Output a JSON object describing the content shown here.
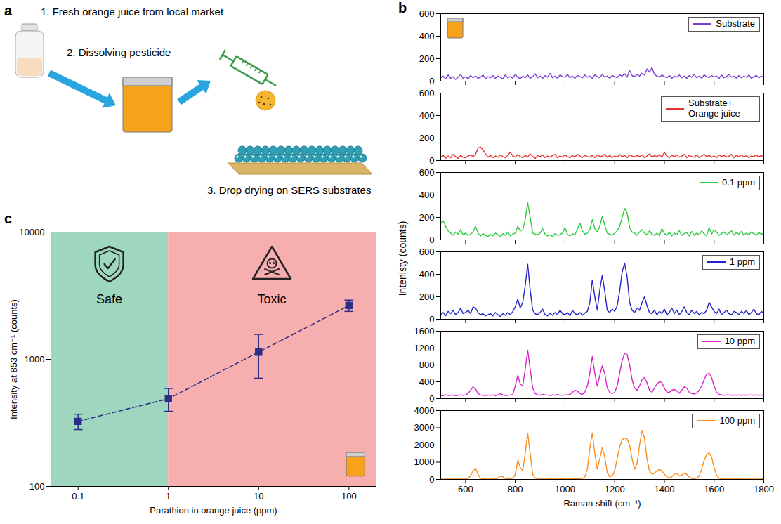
{
  "diagram": {
    "panel": "a",
    "steps": [
      "1. Fresh orange juice from local market",
      "2. Dissolving pesticide",
      "3. Drop drying on SERS substrates"
    ]
  },
  "chart_data": [
    {
      "panel": "b",
      "type": "line",
      "x_label": "Raman shift (cm⁻¹)",
      "y_label": "Intenisty (counts)",
      "legend": "top-right",
      "xlim": [
        500,
        1800
      ],
      "xticks": [
        600,
        800,
        1000,
        1200,
        1400,
        1600,
        1800
      ],
      "x": [
        500,
        510,
        520,
        530,
        540,
        550,
        560,
        570,
        580,
        590,
        600,
        610,
        620,
        630,
        640,
        650,
        660,
        670,
        680,
        690,
        700,
        710,
        720,
        730,
        740,
        750,
        760,
        770,
        780,
        790,
        800,
        810,
        820,
        830,
        840,
        850,
        860,
        870,
        880,
        890,
        900,
        910,
        920,
        930,
        940,
        950,
        960,
        970,
        980,
        990,
        1000,
        1010,
        1020,
        1030,
        1040,
        1050,
        1060,
        1070,
        1080,
        1090,
        1100,
        1110,
        1120,
        1130,
        1140,
        1150,
        1160,
        1170,
        1180,
        1190,
        1200,
        1210,
        1220,
        1230,
        1240,
        1250,
        1260,
        1270,
        1280,
        1290,
        1300,
        1310,
        1320,
        1330,
        1340,
        1350,
        1360,
        1370,
        1380,
        1390,
        1400,
        1410,
        1420,
        1430,
        1440,
        1450,
        1460,
        1470,
        1480,
        1490,
        1500,
        1510,
        1520,
        1530,
        1540,
        1550,
        1560,
        1570,
        1580,
        1590,
        1600,
        1610,
        1620,
        1630,
        1640,
        1650,
        1660,
        1670,
        1680,
        1690,
        1700,
        1710,
        1720,
        1730,
        1740,
        1750,
        1760,
        1770,
        1780,
        1790,
        1800
      ],
      "series": [
        {
          "name": "Substrate",
          "color": "#7b3fd6",
          "ylim": [
            0,
            600
          ],
          "yticks": [
            0,
            200,
            400,
            600
          ],
          "tick_labels": "y",
          "values": [
            30,
            45,
            20,
            55,
            25,
            40,
            15,
            35,
            60,
            25,
            40,
            20,
            50,
            30,
            45,
            25,
            35,
            55,
            20,
            40,
            30,
            50,
            25,
            45,
            35,
            20,
            55,
            30,
            40,
            25,
            60,
            35,
            20,
            45,
            30,
            55,
            25,
            40,
            65,
            30,
            45,
            25,
            50,
            35,
            70,
            30,
            45,
            25,
            55,
            40,
            35,
            60,
            30,
            45,
            25,
            50,
            40,
            30,
            55,
            35,
            45,
            25,
            55,
            40,
            30,
            60,
            35,
            45,
            25,
            50,
            40,
            30,
            55,
            45,
            65,
            35,
            95,
            50,
            40,
            60,
            45,
            70,
            55,
            110,
            80,
            120,
            60,
            45,
            35,
            55,
            40,
            30,
            50,
            25,
            45,
            35,
            55,
            30,
            45,
            25,
            50,
            35,
            60,
            30,
            45,
            25,
            55,
            40,
            30,
            50,
            35,
            45,
            25,
            55,
            30,
            40,
            60,
            35,
            45,
            25,
            50,
            30,
            45,
            35,
            55,
            25,
            40,
            50,
            30,
            45,
            35
          ]
        },
        {
          "name": "Substrate+ Orange juice",
          "color": "#e8312f",
          "ylim": [
            0,
            600
          ],
          "yticks": [
            0,
            200,
            400,
            600
          ],
          "tick_labels": "y",
          "values": [
            30,
            45,
            20,
            40,
            25,
            55,
            35,
            20,
            45,
            30,
            25,
            40,
            50,
            35,
            55,
            110,
            120,
            95,
            60,
            30,
            45,
            25,
            40,
            30,
            50,
            35,
            25,
            45,
            75,
            40,
            30,
            55,
            35,
            25,
            45,
            30,
            60,
            35,
            20,
            45,
            35,
            50,
            25,
            40,
            30,
            45,
            55,
            25,
            40,
            30,
            50,
            35,
            25,
            45,
            30,
            55,
            40,
            25,
            45,
            35,
            30,
            45,
            25,
            50,
            35,
            40,
            55,
            30,
            45,
            25,
            40,
            30,
            55,
            35,
            45,
            25,
            50,
            40,
            30,
            45,
            35,
            50,
            25,
            40,
            60,
            30,
            45,
            35,
            55,
            30,
            75,
            40,
            25,
            45,
            35,
            50,
            30,
            40,
            55,
            25,
            45,
            35,
            30,
            50,
            25,
            40,
            55,
            35,
            45,
            30,
            40,
            25,
            50,
            35,
            45,
            30,
            40,
            55,
            25,
            45,
            35,
            50,
            30,
            45,
            25,
            40,
            35,
            50,
            30,
            45,
            35
          ]
        },
        {
          "name": "0.1 ppm",
          "color": "#2ecc40",
          "ylim": [
            0,
            600
          ],
          "yticks": [
            0,
            200,
            400,
            600
          ],
          "tick_labels": "y",
          "values": [
            150,
            170,
            120,
            80,
            60,
            40,
            70,
            50,
            90,
            45,
            60,
            40,
            50,
            70,
            120,
            60,
            35,
            55,
            40,
            30,
            50,
            35,
            60,
            45,
            30,
            55,
            40,
            70,
            35,
            50,
            60,
            120,
            80,
            90,
            180,
            330,
            200,
            60,
            50,
            45,
            60,
            100,
            50,
            35,
            45,
            30,
            55,
            40,
            45,
            60,
            110,
            50,
            35,
            55,
            45,
            95,
            150,
            80,
            50,
            60,
            90,
            180,
            100,
            70,
            120,
            210,
            130,
            60,
            50,
            40,
            60,
            80,
            120,
            200,
            280,
            240,
            110,
            70,
            60,
            40,
            70,
            90,
            60,
            45,
            80,
            50,
            40,
            60,
            35,
            100,
            55,
            40,
            70,
            35,
            60,
            45,
            80,
            40,
            55,
            65,
            35,
            75,
            40,
            60,
            45,
            80,
            55,
            35,
            110,
            50,
            90,
            70,
            40,
            55,
            70,
            45,
            60,
            80,
            40,
            65,
            50,
            75,
            40,
            60,
            45,
            70,
            55,
            40,
            65,
            50,
            60
          ]
        },
        {
          "name": "1 ppm",
          "color": "#2424c8",
          "ylim": [
            0,
            600
          ],
          "yticks": [
            0,
            200,
            400,
            600
          ],
          "tick_labels": "y",
          "values": [
            40,
            60,
            30,
            70,
            50,
            80,
            40,
            60,
            100,
            50,
            60,
            80,
            50,
            110,
            100,
            60,
            40,
            50,
            30,
            40,
            50,
            30,
            60,
            40,
            25,
            50,
            35,
            60,
            40,
            70,
            110,
            180,
            100,
            150,
            300,
            490,
            260,
            80,
            50,
            40,
            60,
            90,
            40,
            30,
            55,
            35,
            60,
            40,
            80,
            50,
            40,
            60,
            30,
            80,
            50,
            40,
            60,
            35,
            55,
            70,
            150,
            350,
            200,
            80,
            260,
            390,
            250,
            80,
            60,
            90,
            70,
            120,
            250,
            420,
            500,
            380,
            150,
            80,
            60,
            100,
            80,
            150,
            200,
            120,
            60,
            50,
            80,
            40,
            70,
            50,
            90,
            40,
            60,
            100,
            50,
            80,
            40,
            70,
            110,
            60,
            40,
            80,
            50,
            70,
            40,
            60,
            50,
            80,
            150,
            110,
            70,
            50,
            90,
            40,
            60,
            80,
            50,
            40,
            70,
            60,
            40,
            70,
            50,
            80,
            40,
            60,
            90,
            50,
            40,
            70,
            50
          ]
        },
        {
          "name": "10 ppm",
          "color": "#d923c9",
          "ylim": [
            0,
            1600
          ],
          "yticks": [
            0,
            400,
            800,
            1200,
            1600
          ],
          "tick_labels": "y",
          "values": [
            80,
            70,
            90,
            75,
            80,
            85,
            70,
            80,
            90,
            80,
            90,
            120,
            200,
            280,
            230,
            120,
            90,
            80,
            75,
            85,
            80,
            90,
            70,
            85,
            120,
            90,
            75,
            80,
            85,
            100,
            300,
            550,
            350,
            300,
            700,
            1150,
            700,
            250,
            120,
            90,
            80,
            100,
            90,
            85,
            75,
            90,
            80,
            95,
            85,
            80,
            90,
            85,
            100,
            150,
            200,
            180,
            120,
            100,
            160,
            300,
            600,
            1000,
            600,
            300,
            550,
            780,
            600,
            250,
            150,
            120,
            150,
            300,
            600,
            900,
            1080,
            1050,
            800,
            450,
            250,
            200,
            300,
            450,
            500,
            380,
            200,
            150,
            250,
            350,
            400,
            380,
            250,
            150,
            150,
            200,
            220,
            180,
            130,
            200,
            280,
            250,
            150,
            120,
            110,
            130,
            200,
            300,
            450,
            580,
            600,
            500,
            300,
            150,
            100,
            90,
            80,
            85,
            90,
            80,
            85,
            80,
            90,
            80,
            85,
            80,
            90,
            85,
            80,
            90,
            80,
            85,
            80
          ]
        },
        {
          "name": "100 ppm",
          "color": "#ff8c1a",
          "ylim": [
            0,
            4000
          ],
          "yticks": [
            0,
            1000,
            2000,
            3000,
            4000
          ],
          "values": [
            20,
            15,
            20,
            25,
            20,
            15,
            20,
            25,
            20,
            20,
            30,
            60,
            200,
            500,
            650,
            300,
            80,
            40,
            30,
            25,
            20,
            25,
            40,
            80,
            200,
            150,
            50,
            30,
            40,
            60,
            300,
            1100,
            700,
            500,
            1500,
            2700,
            1500,
            300,
            80,
            40,
            30,
            25,
            20,
            25,
            30,
            20,
            25,
            20,
            30,
            40,
            30,
            25,
            30,
            40,
            35,
            30,
            40,
            60,
            150,
            600,
            1800,
            2700,
            1500,
            600,
            1200,
            1850,
            1300,
            400,
            150,
            200,
            500,
            1200,
            1900,
            2300,
            2400,
            2350,
            2000,
            1200,
            600,
            900,
            2000,
            2850,
            2400,
            1200,
            500,
            300,
            350,
            500,
            600,
            500,
            300,
            150,
            100,
            150,
            300,
            350,
            200,
            250,
            380,
            300,
            150,
            60,
            40,
            80,
            200,
            600,
            1100,
            1450,
            1550,
            1300,
            700,
            250,
            80,
            40,
            30,
            25,
            20,
            25,
            20,
            30,
            20,
            25,
            20,
            15,
            20,
            25,
            20,
            20,
            25,
            20,
            20
          ]
        }
      ]
    },
    {
      "panel": "c",
      "type": "line",
      "x_label": "Parathion in orange juice (ppm)",
      "y_label": "Intensity at 853 cm⁻¹ (counts)",
      "log": true,
      "xlim": [
        0.05,
        200
      ],
      "xticks": [
        0.1,
        1,
        10,
        100
      ],
      "ylim": [
        100,
        10000
      ],
      "yticks": [
        100,
        1000,
        10000
      ],
      "x": [
        0.1,
        1,
        10,
        100
      ],
      "series": [
        {
          "color": "#2b2d86",
          "marker": "square",
          "line_style": "dashed",
          "values": [
            325,
            490,
            1140,
            2650
          ],
          "errors": [
            45,
            100,
            430,
            270
          ]
        }
      ],
      "regions": [
        {
          "label": "Safe",
          "x": [
            0.05,
            1
          ],
          "color": "#9fd6c0"
        },
        {
          "label": "Toxic",
          "x": [
            1,
            200
          ],
          "color": "#f6aeae"
        }
      ]
    }
  ]
}
